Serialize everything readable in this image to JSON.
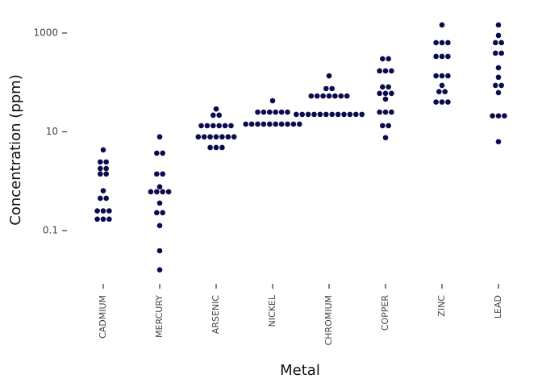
{
  "chart_data": {
    "type": "dotplot",
    "x_label": "Metal",
    "y_label": "Concentration (ppm)",
    "categories": [
      "CADMIUM",
      "MERCURY",
      "ARSENIC",
      "NICKEL",
      "CHROMIUM",
      "COPPER",
      "ZINC",
      "LEAD"
    ],
    "series": [
      {
        "name": "Concentration",
        "color": "#0a0a4f",
        "values": [
          [
            4.3,
            2.45,
            2.45,
            1.8,
            1.8,
            1.4,
            1.4,
            0.64,
            0.45,
            0.45,
            0.25,
            0.25,
            0.25,
            0.17,
            0.17,
            0.17
          ],
          [
            7.9,
            3.7,
            3.7,
            1.4,
            1.4,
            0.77,
            0.61,
            0.61,
            0.61,
            0.61,
            0.36,
            0.23,
            0.23,
            0.126,
            0.039,
            0.016
          ],
          [
            29,
            21.7,
            21.7,
            13.3,
            13.3,
            13.3,
            13.3,
            13.3,
            13.3,
            7.9,
            7.9,
            7.9,
            7.9,
            7.9,
            7.9,
            7.9,
            4.8,
            4.8,
            4.8
          ],
          [
            42.6,
            25,
            25,
            25,
            25,
            25,
            25,
            14.3,
            14.3,
            14.3,
            14.3,
            14.3,
            14.3,
            14.3,
            14.3,
            14.3,
            14.3
          ],
          [
            136,
            75,
            75,
            53,
            53,
            53,
            53,
            53,
            53,
            53,
            22.5,
            22.5,
            22.5,
            22.5,
            22.5,
            22.5,
            22.5,
            22.5,
            22.5,
            22.5,
            22.5,
            22.5
          ],
          [
            301,
            301,
            171,
            171,
            171,
            81,
            81,
            60,
            60,
            60,
            46,
            25,
            25,
            25,
            13.3,
            13.3,
            7.6
          ],
          [
            1456,
            637,
            637,
            637,
            336,
            336,
            336,
            136,
            136,
            136,
            87,
            65,
            65,
            40,
            40,
            40
          ],
          [
            1456,
            893,
            637,
            637,
            391,
            391,
            198,
            127,
            87,
            87,
            62,
            21,
            21,
            21,
            6.3
          ]
        ]
      }
    ],
    "log_y": true,
    "ylim": [
      0.009,
      2200
    ],
    "yticks": [
      0.1,
      10,
      1000
    ],
    "grid": false
  }
}
